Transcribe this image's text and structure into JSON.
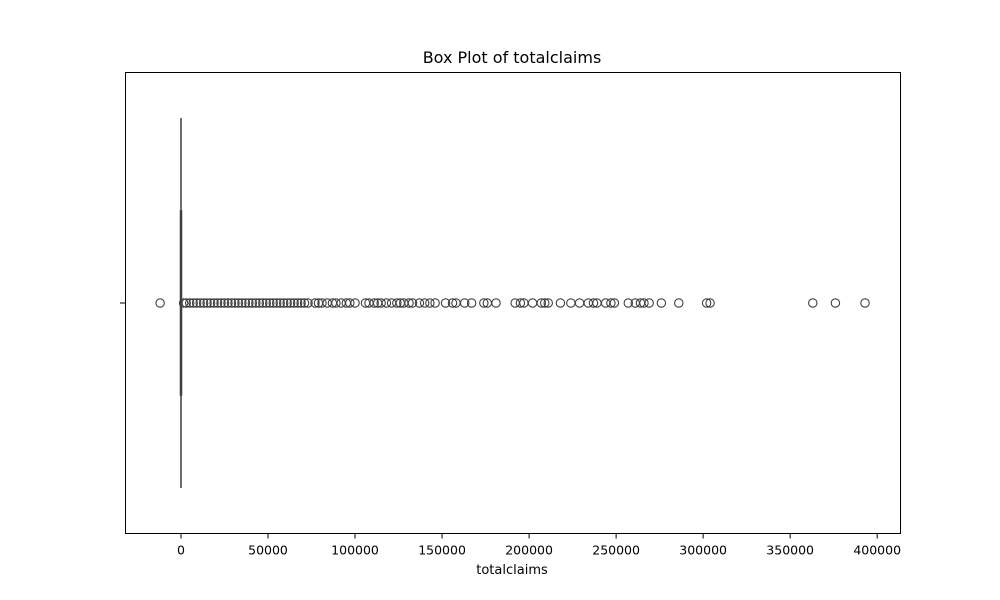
{
  "chart_data": {
    "type": "box",
    "title": "Box Plot of totalclaims",
    "xlabel": "totalclaims",
    "ylabel": "",
    "orientation": "horizontal",
    "xlim": [
      -32000,
      413000
    ],
    "xticks": [
      0,
      50000,
      100000,
      150000,
      200000,
      250000,
      300000,
      350000,
      400000
    ],
    "xtick_labels": [
      "0",
      "50000",
      "100000",
      "150000",
      "200000",
      "250000",
      "300000",
      "350000",
      "400000"
    ],
    "grid": false,
    "series": [
      {
        "min": 0,
        "q1": 0,
        "median": 0,
        "q3": 0,
        "max": 0,
        "outliers": [
          -12000,
          1500,
          3000,
          5000,
          7000,
          9000,
          11000,
          13000,
          15000,
          17000,
          19000,
          21000,
          23000,
          25000,
          27000,
          29000,
          31000,
          33000,
          35000,
          37000,
          39000,
          41000,
          43000,
          45000,
          47000,
          49000,
          51000,
          53000,
          55000,
          57000,
          59000,
          61000,
          63000,
          65000,
          67000,
          69000,
          71000,
          73000,
          77000,
          79000,
          81000,
          84000,
          87000,
          89000,
          92000,
          95000,
          97000,
          100000,
          106000,
          108000,
          111000,
          113000,
          115000,
          118000,
          121000,
          124000,
          126000,
          128000,
          131000,
          133000,
          137000,
          140000,
          143000,
          146000,
          152000,
          156000,
          158000,
          163000,
          167000,
          174000,
          176000,
          181000,
          192000,
          195000,
          197000,
          202000,
          207000,
          209000,
          211000,
          218000,
          224000,
          229000,
          234000,
          237000,
          239000,
          244000,
          247000,
          249000,
          257000,
          261000,
          264000,
          266000,
          269000,
          276000,
          286000,
          302000,
          304000,
          363000,
          376000,
          393000
        ]
      }
    ],
    "colors": {
      "line": "#3f3f3f",
      "frame": "#000000"
    }
  }
}
